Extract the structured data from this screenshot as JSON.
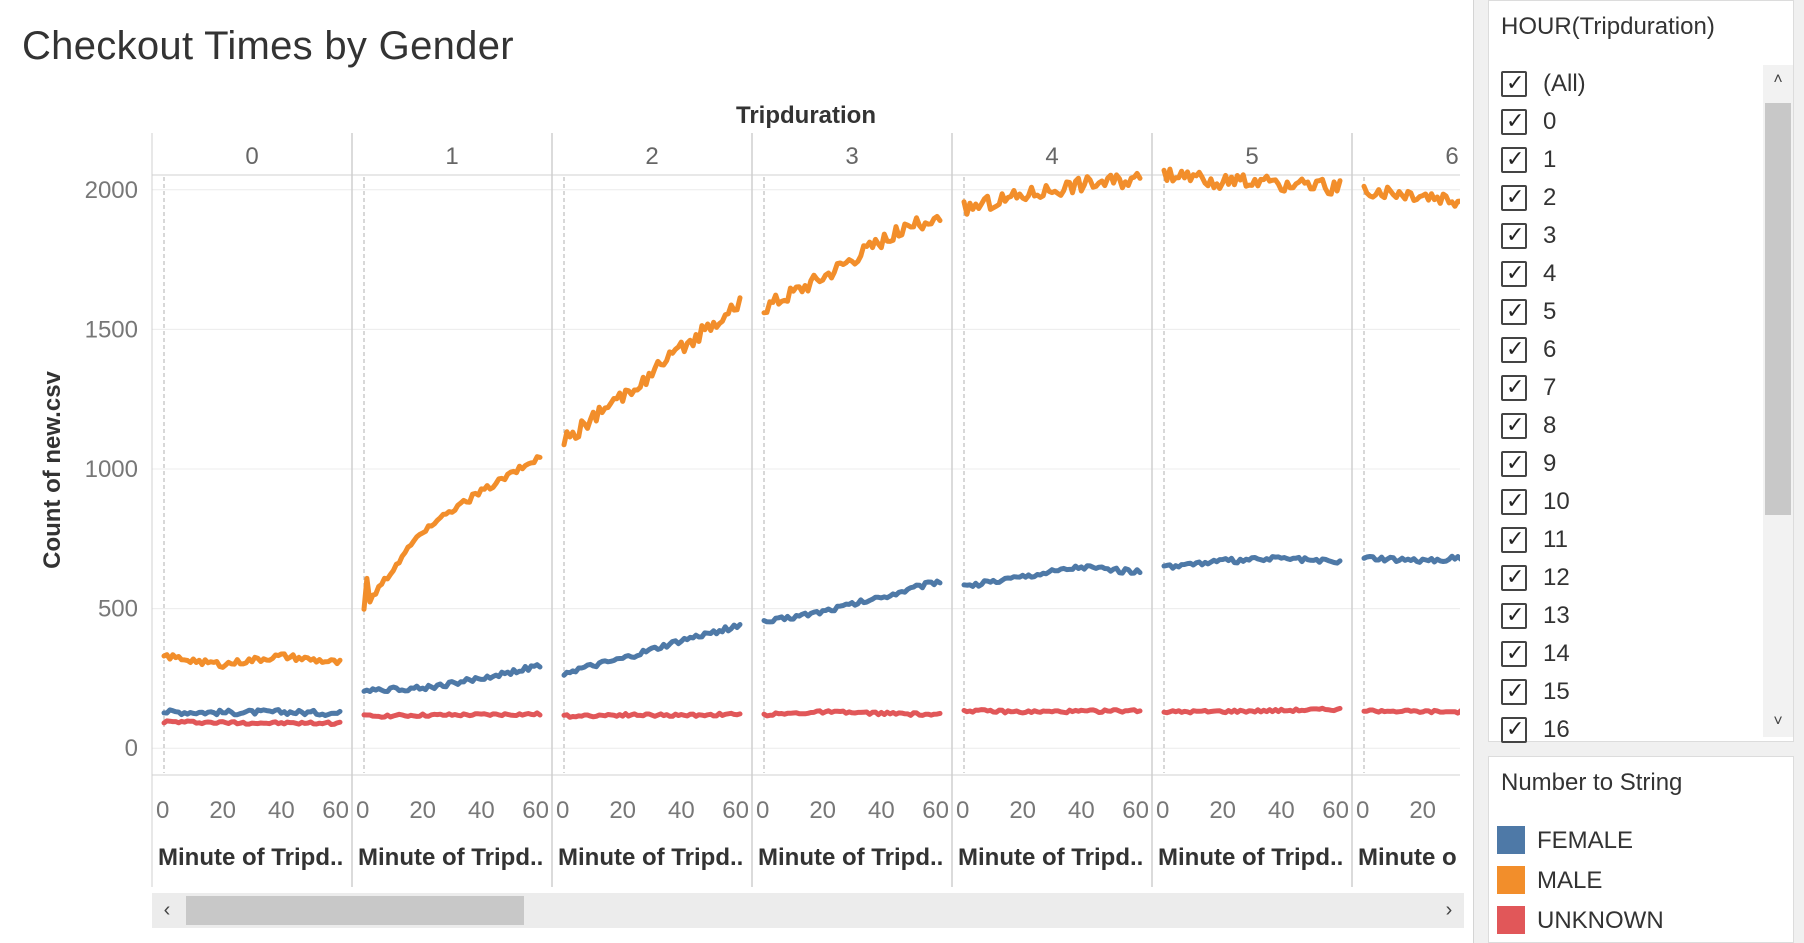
{
  "title": "Checkout Times by Gender",
  "colors": {
    "FEMALE": "#4e79a7",
    "MALE": "#f28e2b",
    "UNKNOWN": "#e15759"
  },
  "chart_data": {
    "type": "line",
    "title": "Checkout Times by Gender",
    "column_header": "Tripduration",
    "ylabel": "Count of new.csv",
    "xlabel_truncated": "Minute of Tripd..",
    "xlabel_last_truncated": "Minute o",
    "ylim": [
      -60,
      2250
    ],
    "yticks": [
      0,
      500,
      1000,
      1500,
      2000
    ],
    "x_ticks_labels": [
      "0",
      "20",
      "40",
      "60"
    ],
    "x_ticks_last_labels": [
      "0",
      "20"
    ],
    "grid": true,
    "legend_position": "right",
    "panels": [
      {
        "hour": "0",
        "FEMALE": [
          130,
          128,
          130,
          125
        ],
        "MALE": [
          330,
          300,
          330,
          305
        ],
        "UNKNOWN": [
          95,
          92,
          90,
          90
        ]
      },
      {
        "hour": "1",
        "FEMALE": [
          210,
          215,
          250,
          295
        ],
        "MALE": [
          500,
          780,
          920,
          1045
        ],
        "UNKNOWN": [
          115,
          118,
          120,
          122
        ]
      },
      {
        "hour": "2",
        "FEMALE": [
          270,
          320,
          385,
          440
        ],
        "MALE": [
          1100,
          1260,
          1430,
          1600
        ],
        "UNKNOWN": [
          115,
          120,
          118,
          122
        ]
      },
      {
        "hour": "3",
        "FEMALE": [
          450,
          490,
          540,
          600
        ],
        "MALE": [
          1580,
          1690,
          1820,
          1910
        ],
        "UNKNOWN": [
          120,
          130,
          125,
          120
        ]
      },
      {
        "hour": "4",
        "FEMALE": [
          580,
          615,
          650,
          630
        ],
        "MALE": [
          1930,
          1980,
          2020,
          2040
        ],
        "UNKNOWN": [
          135,
          130,
          132,
          135
        ]
      },
      {
        "hour": "5",
        "FEMALE": [
          650,
          670,
          680,
          665
        ],
        "MALE": [
          2050,
          2030,
          2020,
          2010
        ],
        "UNKNOWN": [
          130,
          132,
          135,
          140
        ]
      },
      {
        "hour": "6",
        "FEMALE": [
          680,
          670,
          690,
          650
        ],
        "MALE": [
          2000,
          1980,
          1950,
          1940
        ],
        "UNKNOWN": [
          135,
          132,
          130,
          125
        ]
      }
    ]
  },
  "filter": {
    "title": "HOUR(Tripduration)",
    "items": [
      "(All)",
      "0",
      "1",
      "2",
      "3",
      "4",
      "5",
      "6",
      "7",
      "8",
      "9",
      "10",
      "11",
      "12",
      "13",
      "14",
      "15",
      "16"
    ]
  },
  "legend": {
    "title": "Number to String",
    "items": [
      {
        "label": "FEMALE",
        "color": "#4e79a7"
      },
      {
        "label": "MALE",
        "color": "#f28e2b"
      },
      {
        "label": "UNKNOWN",
        "color": "#e15759"
      }
    ]
  }
}
